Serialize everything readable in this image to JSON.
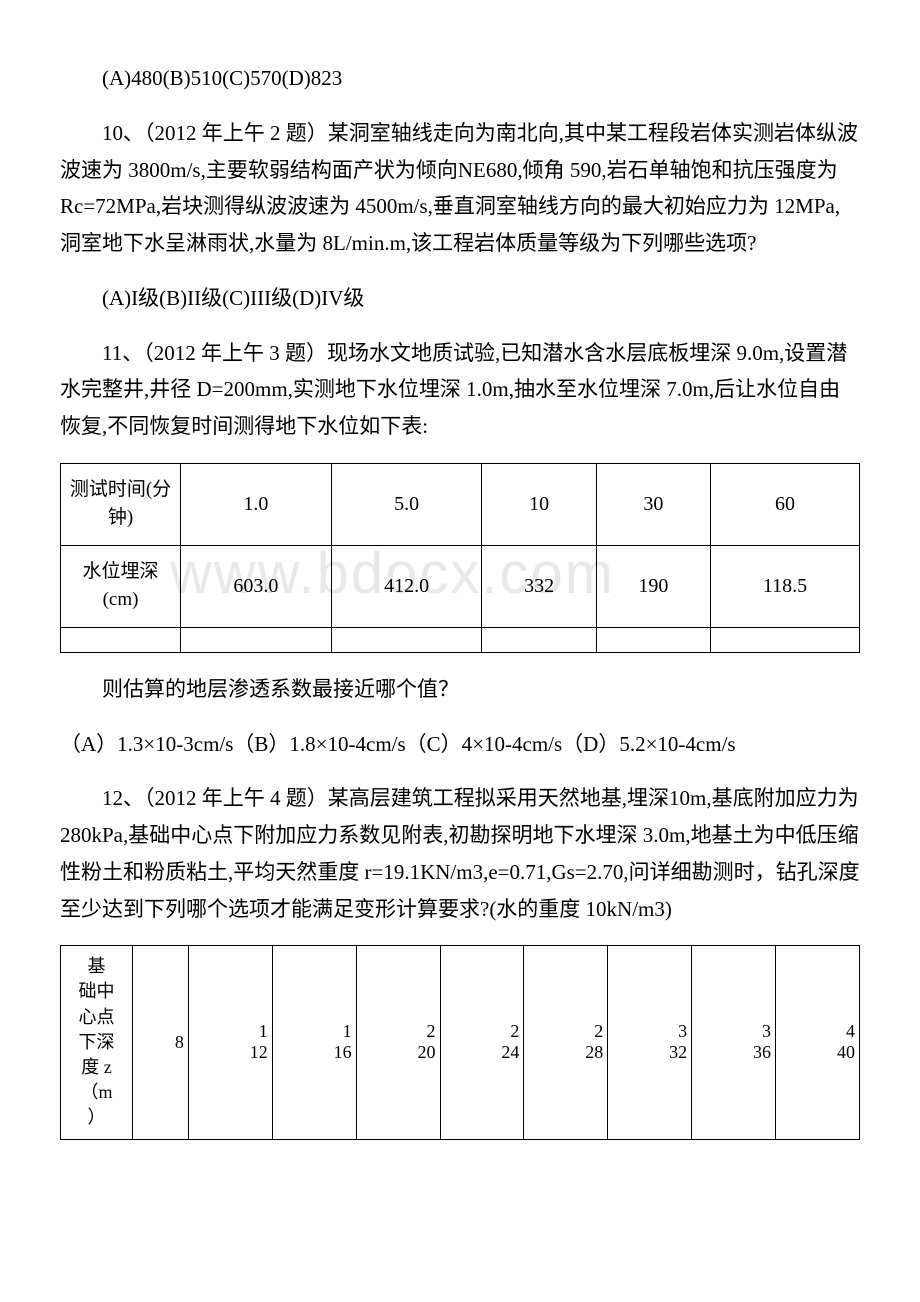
{
  "watermark": "www.bdocx.com",
  "q9": {
    "options": "(A)480(B)510(C)570(D)823"
  },
  "q10": {
    "text": "10、（2012 年上午 2 题）某洞室轴线走向为南北向,其中某工程段岩体实测岩体纵波波速为 3800m/s,主要软弱结构面产状为倾向NE680,倾角 590,岩石单轴饱和抗压强度为 Rc=72MPa,岩块测得纵波波速为 4500m/s,垂直洞室轴线方向的最大初始应力为 12MPa,洞室地下水呈淋雨状,水量为 8L/min.m,该工程岩体质量等级为下列哪些选项?",
    "options": "(A)I级(B)II级(C)III级(D)IV级"
  },
  "q11": {
    "text": "11、（2012 年上午 3 题）现场水文地质试验,已知潜水含水层底板埋深 9.0m,设置潜水完整井,井径 D=200mm,实测地下水位埋深 1.0m,抽水至水位埋深 7.0m,后让水位自由恢复,不同恢复时间测得地下水位如下表:",
    "followup": "则估算的地层渗透系数最接近哪个值？",
    "answer": "（A）1.3×10-3cm/s（B）1.8×10-4cm/s（C）4×10-4cm/s（D）5.2×10-4cm/s"
  },
  "q12": {
    "text": "12、（2012 年上午 4 题）某高层建筑工程拟采用天然地基,埋深10m,基底附加应力为 280kPa,基础中心点下附加应力系数见附表,初勘探明地下水埋深 3.0m,地基土为中低压缩性粉土和粉质粘土,平均天然重度 r=19.1KN/m3,e=0.71,Gs=2.70,问详细勘测时，钻孔深度至少达到下列哪个选项才能满足变形计算要求?(水的重度 10kN/m3)"
  },
  "table1": {
    "row1_label": "测试时间(分钟)",
    "row1_values": [
      "1.0",
      "5.0",
      "10",
      "30",
      "60"
    ],
    "row2_label": "水位埋深(cm)",
    "row2_values": [
      "603.0",
      "412.0",
      "332",
      "190",
      "118.5"
    ]
  },
  "table2": {
    "label_lines": [
      "基",
      "础中",
      "心点",
      "下深",
      "度 z",
      "（m",
      "）"
    ],
    "values": [
      "8",
      "12",
      "16",
      "20",
      "24",
      "28",
      "32",
      "36",
      "40"
    ],
    "values_p1": [
      "1",
      "1",
      "2",
      "2",
      "2",
      "3",
      "3",
      "4"
    ]
  }
}
